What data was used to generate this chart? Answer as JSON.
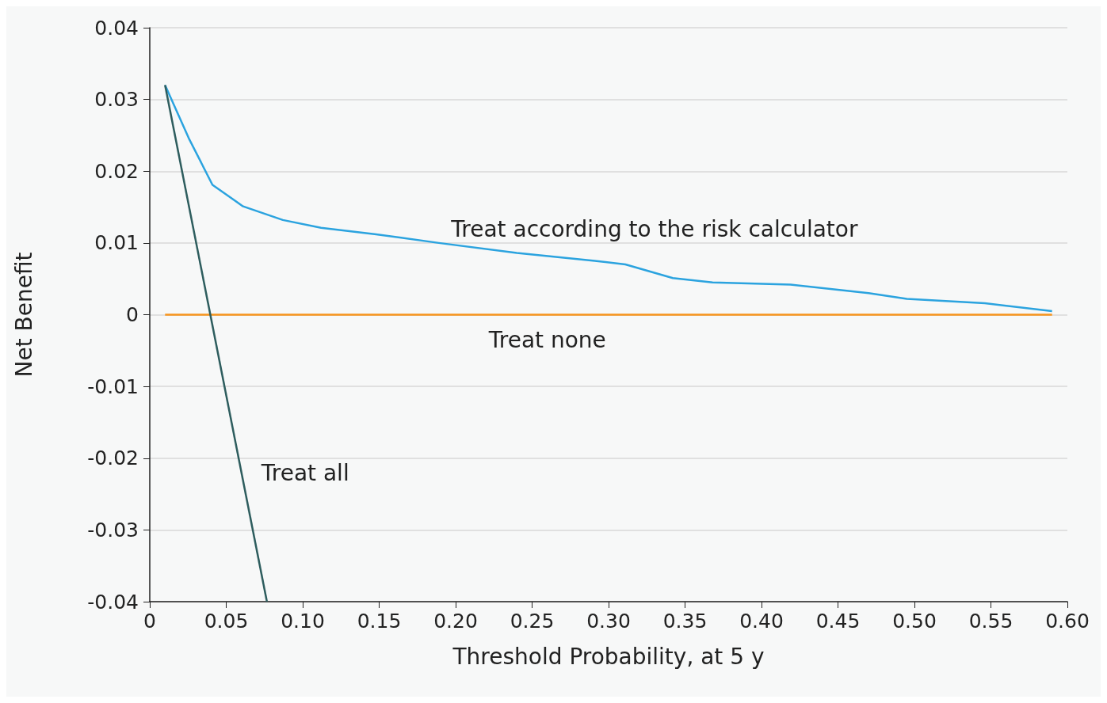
{
  "chart_data": {
    "type": "line",
    "xlabel": "Threshold Probability, at 5 y",
    "ylabel": "Net Benefit",
    "xlim": [
      0,
      0.6
    ],
    "xticks": [
      0,
      0.05,
      {
        "value": 0.1,
        "label": "0.10"
      },
      0.15,
      {
        "value": 0.2,
        "label": "0.20"
      },
      0.25,
      {
        "value": 0.3,
        "label": "0.30"
      },
      0.35,
      {
        "value": 0.4,
        "label": "0.40"
      },
      0.45,
      {
        "value": 0.5,
        "label": "0.50"
      },
      0.55,
      {
        "value": 0.6,
        "label": "0.60"
      }
    ],
    "ylim": [
      -0.04,
      0.04
    ],
    "yticks": [
      -0.04,
      -0.03,
      -0.02,
      -0.01,
      0,
      0.01,
      0.02,
      0.03,
      0.04
    ],
    "grid": "y",
    "legend": false,
    "marker": "none",
    "line_style": "solid",
    "series": [
      {
        "name": "Treat according to the risk calculator",
        "color": "#2ba3df",
        "x": [
          0.01,
          0.0255,
          0.041,
          0.061,
          0.087,
          0.112,
          0.148,
          0.189,
          0.24,
          0.291,
          0.311,
          0.342,
          0.368,
          0.419,
          0.47,
          0.495,
          0.546,
          0.59
        ],
        "values": [
          0.032,
          0.0246,
          0.0181,
          0.0151,
          0.0132,
          0.0121,
          0.0112,
          0.01,
          0.0086,
          0.0075,
          0.007,
          0.0051,
          0.0045,
          0.0042,
          0.003,
          0.0022,
          0.0016,
          0.0005
        ]
      },
      {
        "name": "Treat none",
        "color": "#f7941d",
        "x": [
          0.01,
          0.59
        ],
        "values": [
          0,
          0
        ]
      },
      {
        "name": "Treat all",
        "color": "#2e5d5e",
        "x": [
          0.01,
          0.0766
        ],
        "values": [
          0.032,
          -0.04
        ]
      }
    ]
  }
}
